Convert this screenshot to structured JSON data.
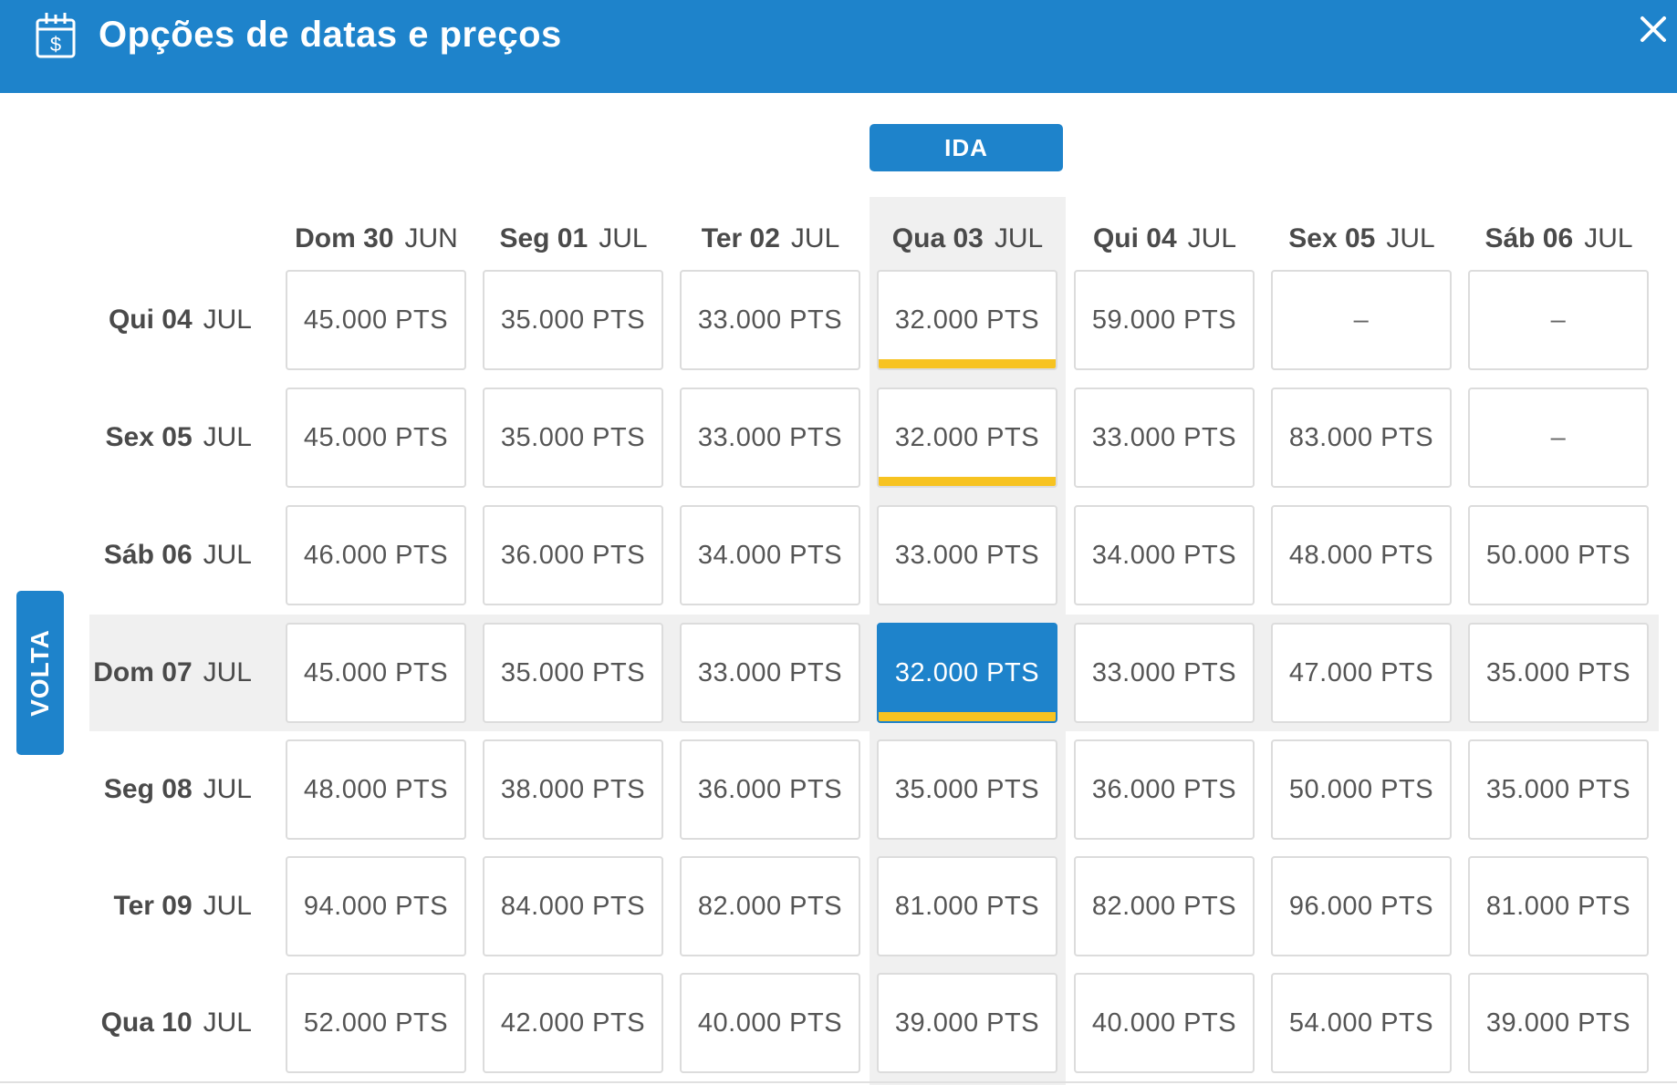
{
  "header": {
    "title": "Opções de datas e preços",
    "icon": "calendar-dollar-icon",
    "close_icon": "close-icon",
    "background": "#1e83cb"
  },
  "tabs": {
    "ida": "IDA",
    "volta": "VOLTA"
  },
  "colors": {
    "primary": "#1e83cb",
    "best_price_bar": "#f7c321",
    "highlight": "#f0f0f0"
  },
  "columns": [
    {
      "weekday": "Dom 30",
      "month": "JUN"
    },
    {
      "weekday": "Seg 01",
      "month": "JUL"
    },
    {
      "weekday": "Ter 02",
      "month": "JUL"
    },
    {
      "weekday": "Qua 03",
      "month": "JUL"
    },
    {
      "weekday": "Qui 04",
      "month": "JUL"
    },
    {
      "weekday": "Sex 05",
      "month": "JUL"
    },
    {
      "weekday": "Sáb 06",
      "month": "JUL"
    }
  ],
  "rows": [
    {
      "weekday": "Qui 04",
      "month": "JUL",
      "prices": [
        "45.000 PTS",
        "35.000 PTS",
        "33.000 PTS",
        "32.000 PTS",
        "59.000 PTS",
        "–",
        "–"
      ]
    },
    {
      "weekday": "Sex 05",
      "month": "JUL",
      "prices": [
        "45.000 PTS",
        "35.000 PTS",
        "33.000 PTS",
        "32.000 PTS",
        "33.000 PTS",
        "83.000 PTS",
        "–"
      ]
    },
    {
      "weekday": "Sáb 06",
      "month": "JUL",
      "prices": [
        "46.000 PTS",
        "36.000 PTS",
        "34.000 PTS",
        "33.000 PTS",
        "34.000 PTS",
        "48.000 PTS",
        "50.000 PTS"
      ]
    },
    {
      "weekday": "Dom 07",
      "month": "JUL",
      "prices": [
        "45.000 PTS",
        "35.000 PTS",
        "33.000 PTS",
        "32.000 PTS",
        "33.000 PTS",
        "47.000 PTS",
        "35.000 PTS"
      ]
    },
    {
      "weekday": "Seg 08",
      "month": "JUL",
      "prices": [
        "48.000 PTS",
        "38.000 PTS",
        "36.000 PTS",
        "35.000 PTS",
        "36.000 PTS",
        "50.000 PTS",
        "35.000 PTS"
      ]
    },
    {
      "weekday": "Ter 09",
      "month": "JUL",
      "prices": [
        "94.000 PTS",
        "84.000 PTS",
        "82.000 PTS",
        "81.000 PTS",
        "82.000 PTS",
        "96.000 PTS",
        "81.000 PTS"
      ]
    },
    {
      "weekday": "Qua 10",
      "month": "JUL",
      "prices": [
        "52.000 PTS",
        "42.000 PTS",
        "40.000 PTS",
        "39.000 PTS",
        "40.000 PTS",
        "54.000 PTS",
        "39.000 PTS"
      ]
    }
  ],
  "selected": {
    "row": 3,
    "col": 3
  },
  "best_price_cells": [
    [
      0,
      3
    ],
    [
      1,
      3
    ],
    [
      3,
      3
    ]
  ]
}
